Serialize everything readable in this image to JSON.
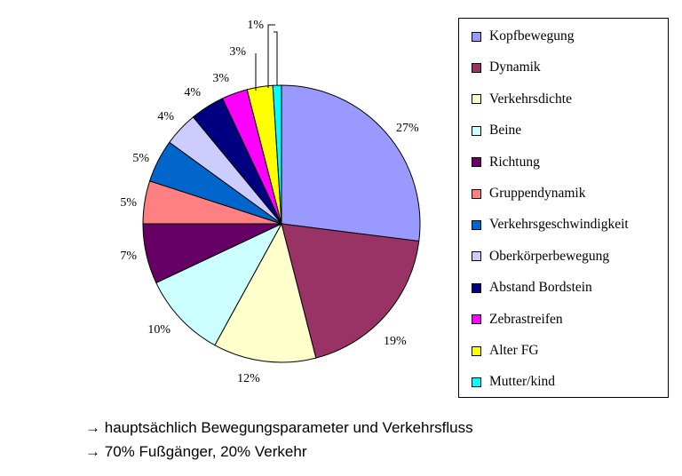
{
  "chart_data": {
    "type": "pie",
    "title": "",
    "labels": [
      "Kopfbewegung",
      "Dynamik",
      "Verkehrsdichte",
      "Beine",
      "Richtung",
      "Gruppendynamik",
      "Verkehrsgeschwindigkeit",
      "Oberkörperbewegung",
      "Abstand Bordstein",
      "Zebrastreifen",
      "Alter FG",
      "Mutter/kind"
    ],
    "values": [
      27,
      19,
      12,
      10,
      7,
      5,
      5,
      4,
      4,
      3,
      3,
      1
    ],
    "data_labels": [
      "27%",
      "19%",
      "12%",
      "10%",
      "7%",
      "5%",
      "5%",
      "4%",
      "4%",
      "3%",
      "3%",
      "1%"
    ],
    "colors": [
      "#9999FF",
      "#993366",
      "#FFFFCC",
      "#CCFFFF",
      "#660066",
      "#FF8080",
      "#0066CC",
      "#CCCCFF",
      "#000080",
      "#FF00FF",
      "#FFFF00",
      "#00FFFF"
    ],
    "legend_position": "right"
  },
  "notes": {
    "arrow": "→",
    "line1": "hauptsächlich Bewegungsparameter und Verkehrsfluss",
    "line2": "70% Fußgänger, 20% Verkehr"
  }
}
